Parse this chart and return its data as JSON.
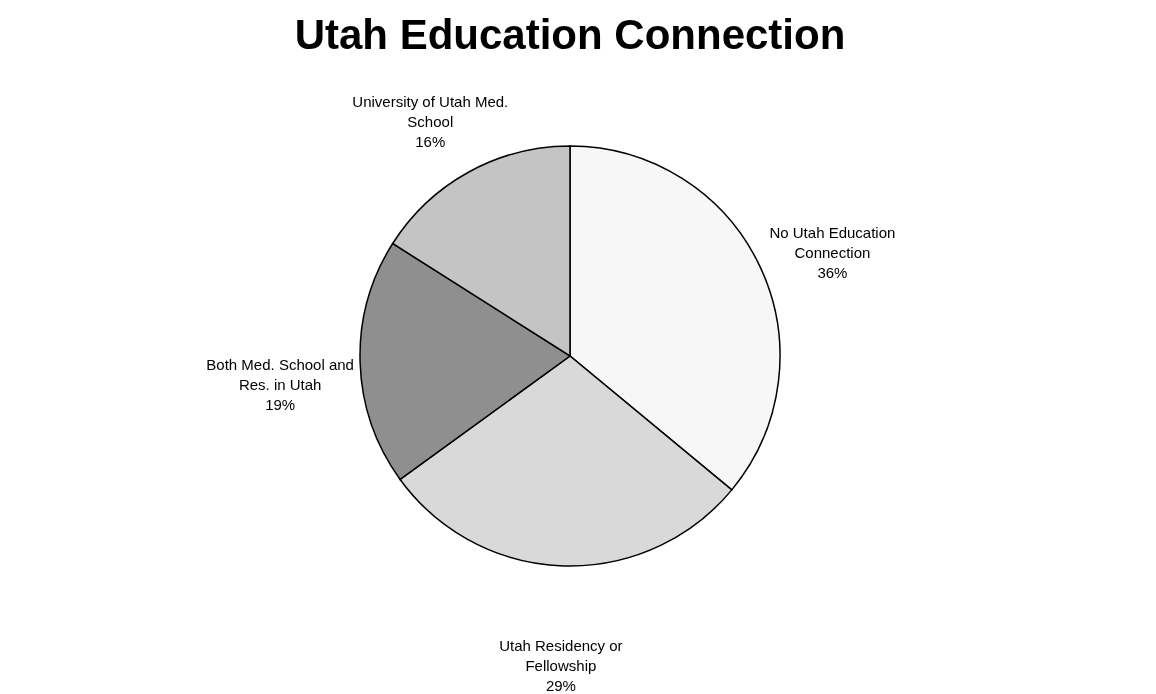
{
  "chart_data": {
    "type": "pie",
    "title": "Utah Education Connection",
    "categories": [
      "No Utah Education Connection",
      "Utah Residency or Fellowship",
      "Both Med. School and Res. in Utah",
      "University of Utah Med. School"
    ],
    "values": [
      36,
      29,
      19,
      16
    ],
    "colors": [
      "#f7f7f7",
      "#d9d9d9",
      "#8f8f8f",
      "#c4c4c4"
    ],
    "value_labels": [
      "36%",
      "29%",
      "19%",
      "16%"
    ],
    "legend": false
  }
}
